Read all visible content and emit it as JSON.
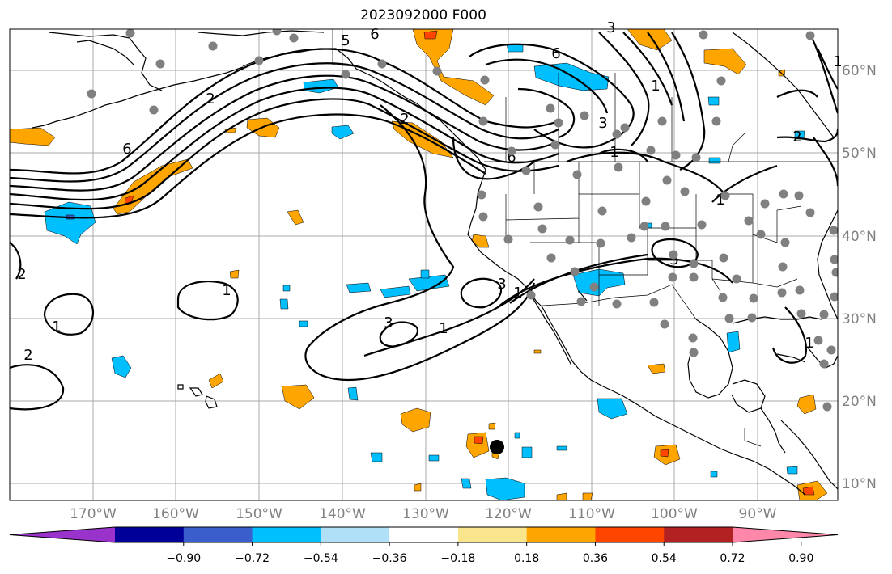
{
  "title": "2023092000 F000",
  "lon_ticks": [
    "170°W",
    "160°W",
    "150°W",
    "140°W",
    "130°W",
    "120°W",
    "110°W",
    "100°W",
    "90°W"
  ],
  "lat_ticks": [
    "10°N",
    "20°N",
    "30°N",
    "40°N",
    "50°N",
    "60°N"
  ],
  "colorbar": {
    "ticks": [
      "−0.90",
      "−0.72",
      "−0.54",
      "−0.36",
      "−0.18",
      "0.18",
      "0.36",
      "0.54",
      "0.72",
      "0.90"
    ],
    "colors": [
      "#9933cc",
      "#000099",
      "#3a5fcd",
      "#00bfff",
      "#b0e0f8",
      "#ffffff",
      "#f8e58c",
      "#ffa500",
      "#ff4500",
      "#b22222",
      "#ff88aa"
    ]
  },
  "contour_labels": [
    "6",
    "5",
    "6",
    "2",
    "6",
    "3",
    "1",
    "6",
    "2",
    "1",
    "2",
    "3",
    "1",
    "1",
    "1",
    "3",
    "2",
    "3",
    "1",
    "2",
    "1",
    "1",
    "3",
    "1"
  ],
  "marker": "storm-center"
}
